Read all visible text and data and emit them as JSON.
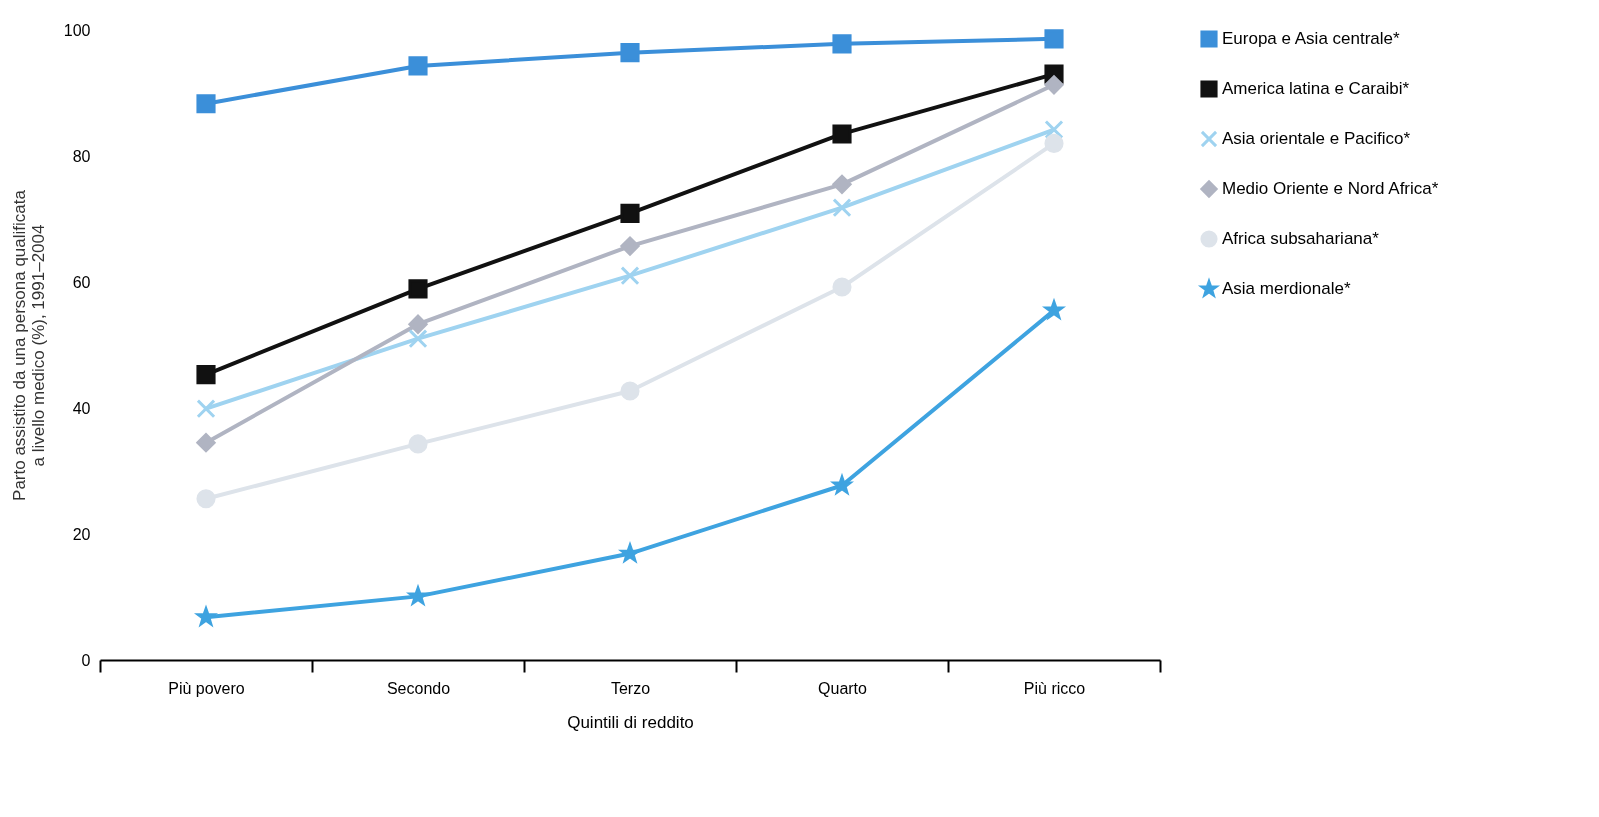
{
  "chart_data": {
    "type": "line",
    "ylabel": "Parto assistito da una persona qualificata a livello medico (%), 1991–2004",
    "xlabel": "Quintili di reddito",
    "categories": [
      "Più povero",
      "Secondo",
      "Terzo",
      "Quarto",
      "Più ricco"
    ],
    "ylim": [
      0,
      100
    ],
    "yticks": [
      0,
      20,
      40,
      60,
      80,
      100
    ],
    "grid": false,
    "legend": "right",
    "line_style": "solid",
    "series": [
      {
        "name": "Europa e Asia centrale*",
        "color": "#3b8fd9",
        "marker": "square",
        "values": [
          88.3,
          94.3,
          96.4,
          97.8,
          98.6
        ]
      },
      {
        "name": "America latina e Caraibi*",
        "color": "#111111",
        "marker": "square",
        "values": [
          45.3,
          58.9,
          70.9,
          83.5,
          93
        ]
      },
      {
        "name": "Asia orientale e Pacifico*",
        "color": "#9fd3f0",
        "marker": "cross",
        "values": [
          39.9,
          51,
          61,
          71.8,
          84.2
        ]
      },
      {
        "name": "Medio Oriente e Nord Africa*",
        "color": "#b0b4c2",
        "marker": "diamond",
        "values": [
          34.5,
          53.3,
          65.7,
          75.5,
          91.3
        ]
      },
      {
        "name": "Africa subsahariana*",
        "color": "#dde3ea",
        "marker": "circle",
        "values": [
          25.6,
          34.3,
          42.7,
          59.2,
          82
        ]
      },
      {
        "name": "Asia merdionale*",
        "color": "#3ea3e0",
        "marker": "star",
        "values": [
          6.8,
          10.1,
          16.9,
          27.7,
          55.5
        ]
      }
    ]
  }
}
